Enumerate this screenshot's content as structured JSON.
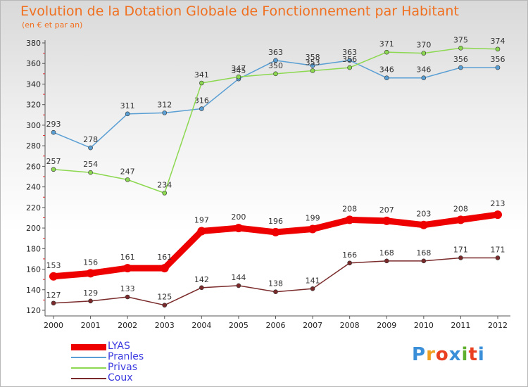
{
  "title": "Evolution de la Dotation Globale de Fonctionnement par Habitant",
  "subtitle": "(en € et par an)",
  "logo": {
    "text": "Proxiti",
    "colors": [
      "#3a8fd8",
      "#f0a020",
      "#e84020",
      "#3a8fd8",
      "#60b030",
      "#e84020",
      "#3a8fd8"
    ]
  },
  "chart_data": {
    "type": "line",
    "x": [
      "2000",
      "2001",
      "2002",
      "2003",
      "2004",
      "2005",
      "2006",
      "2007",
      "2008",
      "2009",
      "2010",
      "2011",
      "2012"
    ],
    "ylim": [
      120,
      380
    ],
    "yticks": [
      120,
      140,
      160,
      180,
      200,
      220,
      240,
      260,
      280,
      300,
      320,
      340,
      360,
      380
    ],
    "grid": false,
    "legend_position": "bottom-left",
    "series": [
      {
        "name": "Pranles",
        "color": "#5a9fd4",
        "values": [
          293,
          278,
          311,
          312,
          316,
          345,
          363,
          358,
          363,
          346,
          346,
          356,
          356
        ]
      },
      {
        "name": "Privas",
        "color": "#8cd850",
        "values": [
          257,
          254,
          247,
          234,
          341,
          347,
          350,
          353,
          356,
          371,
          370,
          375,
          374
        ]
      },
      {
        "name": "Coux",
        "color": "#7a2a2a",
        "values": [
          127,
          129,
          133,
          125,
          142,
          144,
          138,
          141,
          166,
          168,
          168,
          171,
          171
        ]
      },
      {
        "name": "LYAS",
        "color": "#ee0000",
        "values": [
          153,
          156,
          161,
          161,
          197,
          200,
          196,
          199,
          208,
          207,
          203,
          208,
          213
        ]
      }
    ]
  }
}
